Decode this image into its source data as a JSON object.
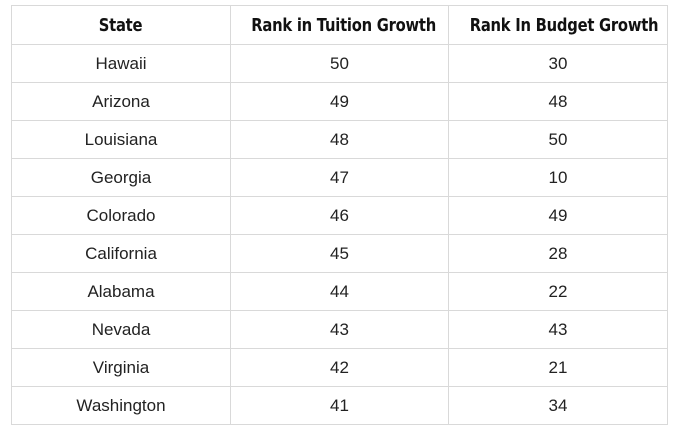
{
  "table": {
    "headers": [
      "State",
      "Rank in Tuition Growth",
      "Rank In Budget Growth"
    ],
    "rows": [
      [
        "Hawaii",
        "50",
        "30"
      ],
      [
        "Arizona",
        "49",
        "48"
      ],
      [
        "Louisiana",
        "48",
        "50"
      ],
      [
        "Georgia",
        "47",
        "10"
      ],
      [
        "Colorado",
        "46",
        "49"
      ],
      [
        "California",
        "45",
        "28"
      ],
      [
        "Alabama",
        "44",
        "22"
      ],
      [
        "Nevada",
        "43",
        "43"
      ],
      [
        "Virginia",
        "42",
        "21"
      ],
      [
        "Washington",
        "41",
        "34"
      ]
    ]
  }
}
